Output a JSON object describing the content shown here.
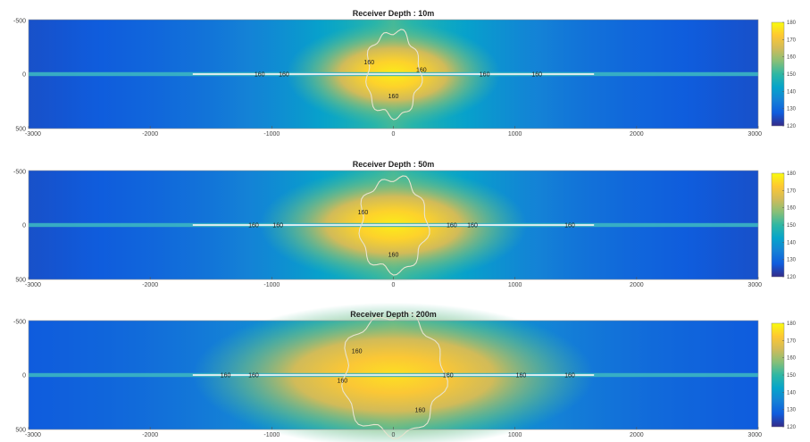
{
  "chart_data": [
    {
      "type": "heatmap",
      "title": "Receiver Depth : 10m",
      "x_ticks": [
        "-3000",
        "-2000",
        "-1000",
        "0",
        "1000",
        "2000",
        "3000"
      ],
      "x_tick_values": [
        -3000,
        -2000,
        -1000,
        0,
        1000,
        2000,
        3000
      ],
      "y_ticks": [
        "-500",
        "0",
        "500"
      ],
      "y_tick_values": [
        -500,
        0,
        500
      ],
      "xlim": [
        -3000,
        3000
      ],
      "ylim": [
        -500,
        500
      ],
      "colorbar": {
        "ticks": [
          "120",
          "130",
          "140",
          "150",
          "160",
          "170",
          "180"
        ],
        "range": [
          120,
          180
        ]
      },
      "contour_level": 160,
      "contour_labels": [
        {
          "text": "160",
          "x": -1100,
          "y": 0
        },
        {
          "text": "160",
          "x": -900,
          "y": 0
        },
        {
          "text": "160",
          "x": -200,
          "y": -110
        },
        {
          "text": "160",
          "x": 230,
          "y": -40
        },
        {
          "text": "160",
          "x": 0,
          "y": 200
        },
        {
          "text": "160",
          "x": 750,
          "y": 0
        },
        {
          "text": "160",
          "x": 1180,
          "y": 0
        }
      ],
      "source": {
        "peak": 178,
        "background_edge": 122,
        "horizontal_extent": 400,
        "vertical_extent": 500
      }
    },
    {
      "type": "heatmap",
      "title": "Receiver Depth : 50m",
      "x_ticks": [
        "-3000",
        "-2000",
        "-1000",
        "0",
        "1000",
        "2000",
        "3000"
      ],
      "x_tick_values": [
        -3000,
        -2000,
        -1000,
        0,
        1000,
        2000,
        3000
      ],
      "y_ticks": [
        "-500",
        "0",
        "500"
      ],
      "y_tick_values": [
        -500,
        0,
        500
      ],
      "xlim": [
        -3000,
        3000
      ],
      "ylim": [
        -500,
        500
      ],
      "colorbar": {
        "ticks": [
          "120",
          "130",
          "140",
          "150",
          "160",
          "170",
          "180"
        ],
        "range": [
          120,
          180
        ]
      },
      "contour_level": 160,
      "contour_labels": [
        {
          "text": "160",
          "x": -1150,
          "y": 0
        },
        {
          "text": "160",
          "x": -950,
          "y": 0
        },
        {
          "text": "160",
          "x": -250,
          "y": -120
        },
        {
          "text": "160",
          "x": 0,
          "y": 270
        },
        {
          "text": "160",
          "x": 480,
          "y": 0
        },
        {
          "text": "160",
          "x": 650,
          "y": 0
        },
        {
          "text": "160",
          "x": 1450,
          "y": 0
        }
      ],
      "source": {
        "peak": 178,
        "background_edge": 122,
        "horizontal_extent": 500,
        "vertical_extent": 550
      }
    },
    {
      "type": "heatmap",
      "title": "Receiver Depth : 200m",
      "x_ticks": [
        "-3000",
        "-2000",
        "-1000",
        "0",
        "1000",
        "2000",
        "3000"
      ],
      "x_tick_values": [
        -3000,
        -2000,
        -1000,
        0,
        1000,
        2000,
        3000
      ],
      "y_ticks": [
        "-500",
        "0",
        "500"
      ],
      "y_tick_values": [
        -500,
        0,
        500
      ],
      "xlim": [
        -3000,
        3000
      ],
      "ylim": [
        -500,
        500
      ],
      "colorbar": {
        "ticks": [
          "120",
          "130",
          "140",
          "150",
          "160",
          "170",
          "180"
        ],
        "range": [
          120,
          180
        ]
      },
      "contour_level": 160,
      "contour_labels": [
        {
          "text": "160",
          "x": -1380,
          "y": 0
        },
        {
          "text": "160",
          "x": -1150,
          "y": 0
        },
        {
          "text": "160",
          "x": -300,
          "y": -220
        },
        {
          "text": "160",
          "x": -420,
          "y": 50
        },
        {
          "text": "160",
          "x": 450,
          "y": 0
        },
        {
          "text": "160",
          "x": 220,
          "y": 320
        },
        {
          "text": "160",
          "x": 1050,
          "y": 0
        },
        {
          "text": "160",
          "x": 1450,
          "y": 0
        }
      ],
      "source": {
        "peak": 176,
        "background_edge": 124,
        "horizontal_extent": 750,
        "vertical_extent": 700
      }
    }
  ],
  "colors": {
    "parula": [
      "#352a87",
      "#0f5cdd",
      "#1481d6",
      "#06a4ca",
      "#2eb7a4",
      "#87bf77",
      "#d1bb59",
      "#fec832",
      "#f9fb0e"
    ],
    "line": "#f2f2f2",
    "contour": "#e8e4d0"
  }
}
